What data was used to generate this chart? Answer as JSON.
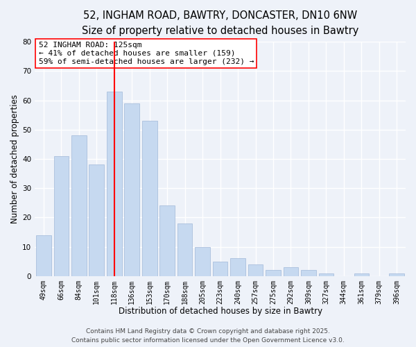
{
  "title_line1": "52, INGHAM ROAD, BAWTRY, DONCASTER, DN10 6NW",
  "title_line2": "Size of property relative to detached houses in Bawtry",
  "xlabel": "Distribution of detached houses by size in Bawtry",
  "ylabel": "Number of detached properties",
  "bar_labels": [
    "49sqm",
    "66sqm",
    "84sqm",
    "101sqm",
    "118sqm",
    "136sqm",
    "153sqm",
    "170sqm",
    "188sqm",
    "205sqm",
    "223sqm",
    "240sqm",
    "257sqm",
    "275sqm",
    "292sqm",
    "309sqm",
    "327sqm",
    "344sqm",
    "361sqm",
    "379sqm",
    "396sqm"
  ],
  "bar_values": [
    14,
    41,
    48,
    38,
    63,
    59,
    53,
    24,
    18,
    10,
    5,
    6,
    4,
    2,
    3,
    2,
    1,
    0,
    1,
    0,
    1
  ],
  "bar_color": "#c6d9f0",
  "bar_edge_color": "#a0b8d8",
  "redline_bar_index": 4,
  "ylim": [
    0,
    80
  ],
  "yticks": [
    0,
    10,
    20,
    30,
    40,
    50,
    60,
    70,
    80
  ],
  "annotation_title": "52 INGHAM ROAD: 125sqm",
  "annotation_line1": "← 41% of detached houses are smaller (159)",
  "annotation_line2": "59% of semi-detached houses are larger (232) →",
  "footer_line1": "Contains HM Land Registry data © Crown copyright and database right 2025.",
  "footer_line2": "Contains public sector information licensed under the Open Government Licence v3.0.",
  "background_color": "#eef2f9",
  "grid_color": "#ffffff",
  "title_fontsize": 10.5,
  "subtitle_fontsize": 9.5,
  "axis_label_fontsize": 8.5,
  "tick_fontsize": 7,
  "annotation_fontsize": 8,
  "footer_fontsize": 6.5
}
